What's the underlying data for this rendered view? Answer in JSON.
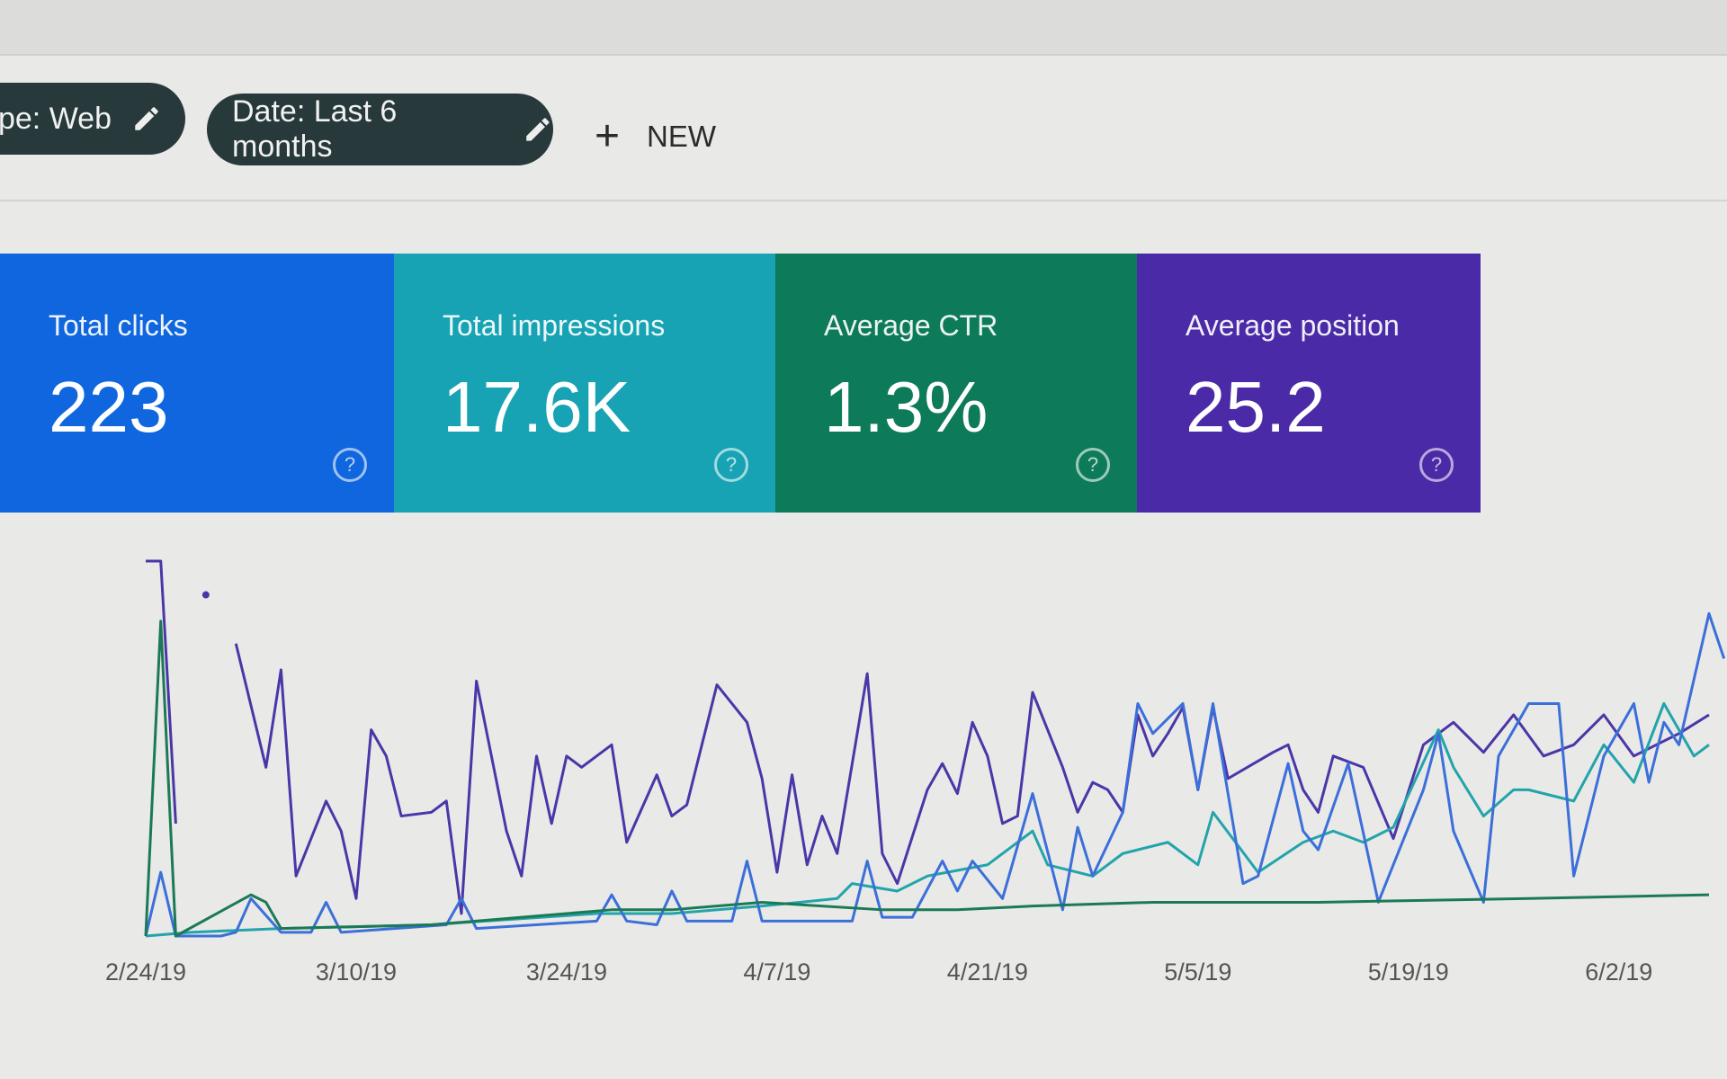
{
  "filters": {
    "type_chip": "ype: Web",
    "date_chip": "Date: Last 6 months",
    "new_label": "NEW"
  },
  "metrics": [
    {
      "label": "Total clicks",
      "value": "223",
      "color": "#0f66de"
    },
    {
      "label": "Total impressions",
      "value": "17.6K",
      "color": "#17a3b3"
    },
    {
      "label": "Average CTR",
      "value": "1.3%",
      "color": "#0d7b59"
    },
    {
      "label": "Average position",
      "value": "25.2",
      "color": "#4a2aa6"
    }
  ],
  "help_glyph": "?",
  "chart_data": {
    "type": "line",
    "x_tick_labels": [
      "2/24/19",
      "3/10/19",
      "3/24/19",
      "4/7/19",
      "4/21/19",
      "5/5/19",
      "5/19/19",
      "6/2/19"
    ],
    "x_range": [
      "2/24/19",
      "6/8/19"
    ],
    "y_range": [
      0,
      100
    ],
    "y_axis_labels_visible": false,
    "grid": false,
    "series": [
      {
        "metric": "Average position",
        "color": "#4b36a8",
        "points": [
          [
            "2/24",
            100
          ],
          [
            "2/25",
            100
          ],
          [
            "2/26",
            30
          ],
          [
            null,
            null
          ],
          [
            "2/28",
            91
          ],
          [
            null,
            null
          ],
          [
            "3/2",
            78
          ],
          [
            "3/4",
            45
          ],
          [
            "3/5",
            71
          ],
          [
            "3/6",
            16
          ],
          [
            "3/8",
            36
          ],
          [
            "3/9",
            28
          ],
          [
            "3/10",
            10
          ],
          [
            "3/11",
            55
          ],
          [
            "3/12",
            48
          ],
          [
            "3/13",
            32
          ],
          [
            "3/15",
            33
          ],
          [
            "3/16",
            36
          ],
          [
            "3/17",
            6
          ],
          [
            "3/18",
            68
          ],
          [
            "3/20",
            28
          ],
          [
            "3/21",
            16
          ],
          [
            "3/22",
            48
          ],
          [
            "3/23",
            30
          ],
          [
            "3/24",
            48
          ],
          [
            "3/25",
            45
          ],
          [
            "3/27",
            51
          ],
          [
            "3/28",
            25
          ],
          [
            "3/30",
            43
          ],
          [
            "3/31",
            32
          ],
          [
            "4/1",
            35
          ],
          [
            "4/3",
            67
          ],
          [
            "4/5",
            57
          ],
          [
            "4/6",
            42
          ],
          [
            "4/7",
            17
          ],
          [
            "4/8",
            43
          ],
          [
            "4/9",
            19
          ],
          [
            "4/10",
            32
          ],
          [
            "4/11",
            22
          ],
          [
            "4/13",
            70
          ],
          [
            "4/14",
            22
          ],
          [
            "4/15",
            14
          ],
          [
            "4/17",
            39
          ],
          [
            "4/18",
            46
          ],
          [
            "4/19",
            38
          ],
          [
            "4/20",
            57
          ],
          [
            "4/21",
            48
          ],
          [
            "4/22",
            30
          ],
          [
            "4/23",
            32
          ],
          [
            "4/24",
            65
          ],
          [
            "4/26",
            45
          ],
          [
            "4/27",
            33
          ],
          [
            "4/28",
            41
          ],
          [
            "4/29",
            39
          ],
          [
            "4/30",
            33
          ],
          [
            "5/1",
            59
          ],
          [
            "5/2",
            48
          ],
          [
            "5/3",
            54
          ],
          [
            "5/4",
            61
          ],
          [
            "5/5",
            39
          ],
          [
            "5/6",
            61
          ],
          [
            "5/7",
            42
          ],
          [
            "5/10",
            49
          ],
          [
            "5/11",
            51
          ],
          [
            "5/12",
            39
          ],
          [
            "5/13",
            33
          ],
          [
            "5/14",
            48
          ],
          [
            "5/16",
            45
          ],
          [
            "5/18",
            26
          ],
          [
            "5/20",
            51
          ],
          [
            "5/22",
            57
          ],
          [
            "5/24",
            49
          ],
          [
            "5/26",
            59
          ],
          [
            "5/28",
            48
          ],
          [
            "5/30",
            51
          ],
          [
            "6/1",
            59
          ],
          [
            "6/3",
            48
          ],
          [
            "6/6",
            54
          ],
          [
            "6/8",
            59
          ]
        ]
      },
      {
        "metric": "Total impressions",
        "color": "#22a4ab",
        "points": [
          [
            "2/24",
            0
          ],
          [
            "2/27",
            1
          ],
          [
            "3/5",
            2
          ],
          [
            "3/15",
            3
          ],
          [
            "3/26",
            6
          ],
          [
            "3/31",
            6
          ],
          [
            "4/6",
            8
          ],
          [
            "4/11",
            10
          ],
          [
            "4/12",
            14
          ],
          [
            "4/15",
            12
          ],
          [
            "4/17",
            16
          ],
          [
            "4/21",
            19
          ],
          [
            "4/24",
            28
          ],
          [
            "4/25",
            19
          ],
          [
            "4/28",
            16
          ],
          [
            "4/30",
            22
          ],
          [
            "5/3",
            25
          ],
          [
            "5/5",
            19
          ],
          [
            "5/6",
            33
          ],
          [
            "5/9",
            17
          ],
          [
            "5/12",
            25
          ],
          [
            "5/14",
            28
          ],
          [
            "5/16",
            25
          ],
          [
            "5/18",
            29
          ],
          [
            "5/21",
            55
          ],
          [
            "5/22",
            45
          ],
          [
            "5/24",
            32
          ],
          [
            "5/26",
            39
          ],
          [
            "5/27",
            39
          ],
          [
            "5/30",
            36
          ],
          [
            "6/1",
            51
          ],
          [
            "6/3",
            41
          ],
          [
            "6/5",
            62
          ],
          [
            "6/7",
            48
          ],
          [
            "6/8",
            51
          ]
        ]
      },
      {
        "metric": "Total clicks",
        "color": "#3b6fd9",
        "points": [
          [
            "2/24",
            0
          ],
          [
            "2/25",
            17
          ],
          [
            "2/26",
            0
          ],
          [
            "3/1",
            0
          ],
          [
            "3/2",
            1
          ],
          [
            "3/3",
            10
          ],
          [
            "3/5",
            1
          ],
          [
            "3/7",
            1
          ],
          [
            "3/8",
            9
          ],
          [
            "3/9",
            1
          ],
          [
            "3/16",
            3
          ],
          [
            "3/17",
            10
          ],
          [
            "3/18",
            2
          ],
          [
            "3/26",
            4
          ],
          [
            "3/27",
            11
          ],
          [
            "3/28",
            4
          ],
          [
            "3/30",
            3
          ],
          [
            "3/31",
            12
          ],
          [
            "4/1",
            4
          ],
          [
            "4/4",
            4
          ],
          [
            "4/5",
            20
          ],
          [
            "4/6",
            4
          ],
          [
            "4/12",
            4
          ],
          [
            "4/13",
            20
          ],
          [
            "4/14",
            5
          ],
          [
            "4/16",
            5
          ],
          [
            "4/18",
            20
          ],
          [
            "4/19",
            12
          ],
          [
            "4/20",
            20
          ],
          [
            "4/22",
            10
          ],
          [
            "4/24",
            38
          ],
          [
            "4/26",
            7
          ],
          [
            "4/27",
            29
          ],
          [
            "4/28",
            16
          ],
          [
            "4/30",
            33
          ],
          [
            "5/1",
            62
          ],
          [
            "5/2",
            54
          ],
          [
            "5/4",
            62
          ],
          [
            "5/5",
            39
          ],
          [
            "5/6",
            62
          ],
          [
            "5/8",
            14
          ],
          [
            "5/9",
            16
          ],
          [
            "5/11",
            46
          ],
          [
            "5/12",
            28
          ],
          [
            "5/13",
            23
          ],
          [
            "5/15",
            46
          ],
          [
            "5/17",
            9
          ],
          [
            "5/20",
            39
          ],
          [
            "5/21",
            54
          ],
          [
            "5/22",
            28
          ],
          [
            "5/24",
            9
          ],
          [
            "5/25",
            48
          ],
          [
            "5/27",
            62
          ],
          [
            "5/29",
            62
          ],
          [
            "5/30",
            16
          ],
          [
            "6/1",
            48
          ],
          [
            "6/3",
            62
          ],
          [
            "6/4",
            41
          ],
          [
            "6/5",
            57
          ],
          [
            "6/6",
            51
          ],
          [
            "6/8",
            86
          ],
          [
            "6/9",
            74
          ]
        ]
      },
      {
        "metric": "Average CTR",
        "color": "#1b7a55",
        "points": [
          [
            "2/24",
            0
          ],
          [
            "2/25",
            84
          ],
          [
            "2/26",
            0
          ],
          [
            "3/3",
            11
          ],
          [
            "3/4",
            9
          ],
          [
            "3/5",
            2
          ],
          [
            "3/15",
            3
          ],
          [
            "3/27",
            7
          ],
          [
            "3/31",
            7
          ],
          [
            "4/6",
            9
          ],
          [
            "4/14",
            7
          ],
          [
            "4/19",
            7
          ],
          [
            "4/24",
            8
          ],
          [
            "5/2",
            9
          ],
          [
            "5/13",
            9
          ],
          [
            "5/27",
            10
          ],
          [
            "6/8",
            11
          ]
        ]
      }
    ]
  }
}
